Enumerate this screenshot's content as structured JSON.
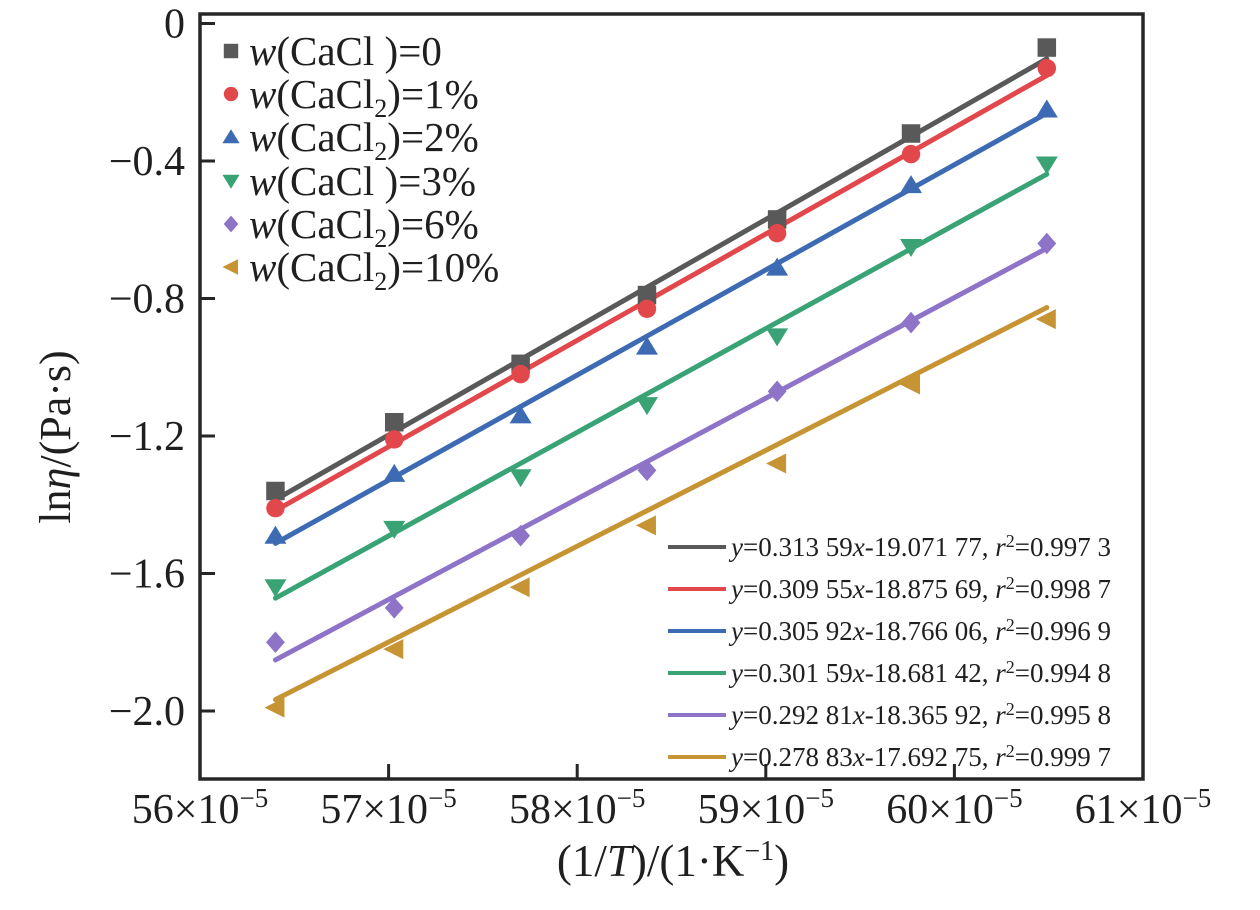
{
  "figure": {
    "background": "#ffffff",
    "axis_color": "#262626",
    "text_color": "#1f1f1f"
  },
  "chart_data": {
    "type": "scatter",
    "title": "",
    "xlabel": "(1/T)/(1·K−1)",
    "ylabel": "lnη/(Pa·s)",
    "xlabel_parts": [
      {
        "t": "(1/"
      },
      {
        "t": "T",
        "italic": true
      },
      {
        "t": ")/(1·K"
      },
      {
        "t": "−1",
        "sup": true
      },
      {
        "t": ")",
        "after_sup": true
      }
    ],
    "ylabel_parts": [
      {
        "t": "ln"
      },
      {
        "t": "η",
        "italic": true
      },
      {
        "t": "/(Pa·s)"
      }
    ],
    "x_axis": {
      "min": 56,
      "max": 61,
      "tick_values": [
        56,
        57,
        58,
        59,
        60,
        61
      ],
      "tick_labels": [
        "56",
        "57",
        "58",
        "59",
        "60",
        "61"
      ],
      "tick_suffix_base": "×10",
      "tick_suffix_sup": "−5"
    },
    "y_axis": {
      "min": -2.2,
      "max": 0.02,
      "tick_values": [
        0,
        -0.4,
        -0.8,
        -1.2,
        -1.6,
        -2.0
      ],
      "tick_labels": [
        "0",
        "−0.4",
        "−0.8",
        "−1.2",
        "−1.6",
        "−2.0"
      ]
    },
    "x_unit_note": "x values in units of 10^-5",
    "x": [
      56.4,
      57.03,
      57.7,
      58.37,
      59.06,
      59.77,
      60.49
    ],
    "series": [
      {
        "name": "w(CaCl )=0",
        "name_w": "w",
        "name_mid": "(CaCl",
        "name_sub": "",
        "name_post": " )=0",
        "marker": "square",
        "color": "#595959",
        "y": [
          -1.36,
          -1.16,
          -0.99,
          -0.79,
          -0.57,
          -0.32,
          -0.07
        ],
        "fit": {
          "slope": 0.31359,
          "intercept": -19.07177,
          "x_start": 56.4,
          "x_end": 60.49
        },
        "equation": {
          "slope_text": "0.313 59",
          "intercept_text": "-19.071 77",
          "r2_text": "0.997 3"
        }
      },
      {
        "name": "w(CaCl2)=1%",
        "name_w": "w",
        "name_mid": "(CaCl",
        "name_sub": "2",
        "name_post": ")=1%",
        "marker": "circle",
        "color": "#e2474b",
        "y": [
          -1.41,
          -1.21,
          -1.02,
          -0.83,
          -0.61,
          -0.38,
          -0.13
        ],
        "fit": {
          "slope": 0.30955,
          "intercept": -18.87569,
          "x_start": 56.4,
          "x_end": 60.49
        },
        "equation": {
          "slope_text": "0.309 55",
          "intercept_text": "-18.875 69",
          "r2_text": "0.998 7"
        }
      },
      {
        "name": "w(CaCl2)=2%",
        "name_w": "w",
        "name_mid": "(CaCl",
        "name_sub": "2",
        "name_post": ")=2%",
        "marker": "triangle-up",
        "color": "#3d6bb3",
        "y": [
          -1.49,
          -1.31,
          -1.14,
          -0.94,
          -0.71,
          -0.47,
          -0.25
        ],
        "fit": {
          "slope": 0.30592,
          "intercept": -18.76606,
          "x_start": 56.4,
          "x_end": 60.49
        },
        "equation": {
          "slope_text": "0.305 92",
          "intercept_text": "-18.766 06",
          "r2_text": "0.996 9"
        }
      },
      {
        "name": "w(CaCl )=3%",
        "name_w": "w",
        "name_mid": "(CaCl",
        "name_sub": "",
        "name_post": " )=3%",
        "marker": "triangle-down",
        "color": "#3aa376",
        "y": [
          -1.64,
          -1.47,
          -1.32,
          -1.11,
          -0.91,
          -0.65,
          -0.41
        ],
        "fit": {
          "slope": 0.30159,
          "intercept": -18.68142,
          "x_start": 56.4,
          "x_end": 60.49
        },
        "equation": {
          "slope_text": "0.301 59",
          "intercept_text": "-18.681 42",
          "r2_text": "0.994 8"
        }
      },
      {
        "name": "w(CaCl2)=6%",
        "name_w": "w",
        "name_mid": "(CaCl",
        "name_sub": "2",
        "name_post": ")=6%",
        "marker": "diamond",
        "color": "#8e74c8",
        "y": [
          -1.8,
          -1.7,
          -1.49,
          -1.3,
          -1.07,
          -0.87,
          -0.64
        ],
        "fit": {
          "slope": 0.29281,
          "intercept": -18.36592,
          "x_start": 56.4,
          "x_end": 60.49
        },
        "equation": {
          "slope_text": "0.292 81",
          "intercept_text": "-18.365 92",
          "r2_text": "0.995 8"
        }
      },
      {
        "name": "w(CaCl2)=10%",
        "name_w": "w",
        "name_mid": "(CaCl",
        "name_sub": "2",
        "name_post": ")=10%",
        "marker": "triangle-left",
        "color": "#c69433",
        "y": [
          -1.99,
          -1.82,
          -1.64,
          -1.46,
          -1.28,
          -1.05,
          -0.86
        ],
        "fit": {
          "slope": 0.27883,
          "intercept": -17.69275,
          "x_start": 56.4,
          "x_end": 60.49
        },
        "equation": {
          "slope_text": "0.278 83",
          "intercept_text": "-17.692 75",
          "r2_text": "0.999 7"
        }
      }
    ],
    "equation_template": {
      "y": "y",
      "eq": "=",
      "x": "x",
      "comma": ", ",
      "r": "r",
      "r_sup": "2"
    },
    "legend_position": "top-left",
    "equations_position": "bottom-right",
    "grid": false
  }
}
